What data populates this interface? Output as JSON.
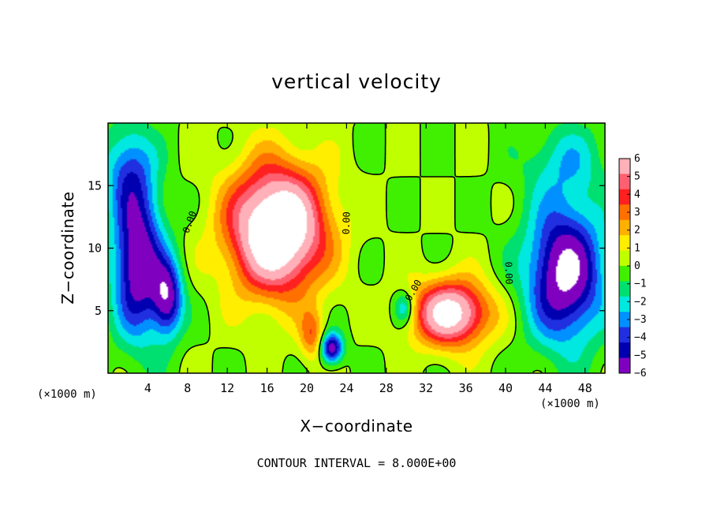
{
  "chart_data": {
    "type": "heatmap",
    "title": "vertical velocity",
    "xlabel": "X−coordinate",
    "ylabel": "Z−coordinate",
    "x_unit": "(×1000 m)",
    "z_unit": "(×1000 m)",
    "xlim": [
      0,
      50
    ],
    "ylim": [
      0,
      20
    ],
    "x_ticks": [
      4,
      8,
      12,
      16,
      20,
      24,
      28,
      32,
      36,
      40,
      44,
      48
    ],
    "y_ticks": [
      5,
      10,
      15
    ],
    "colorbar": {
      "min": -6,
      "max": 6,
      "labels": [
        "6",
        "5",
        "4",
        "3",
        "2",
        "1",
        "0",
        "−1",
        "−2",
        "−3",
        "−4",
        "−5",
        "−6"
      ],
      "colors": [
        "#ffb0b8",
        "#ff6070",
        "#ff2020",
        "#ff7000",
        "#ffb000",
        "#ffee00",
        "#c0ff00",
        "#40f000",
        "#00e070",
        "#00e8e0",
        "#0090ff",
        "#2030e0",
        "#0000b0",
        "#8000c0"
      ]
    },
    "contour_labels": [
      "0.00",
      "0.00",
      "0.00",
      "0.00"
    ],
    "contour_interval_text": "CONTOUR INTERVAL = 8.000E+00",
    "features": [
      {
        "kind": "updraft",
        "x": 17.0,
        "z": 11.5,
        "rx": 4.8,
        "rz": 5.0,
        "w": 9.5
      },
      {
        "kind": "updraft",
        "x": 34.5,
        "z": 4.8,
        "rx": 3.8,
        "rz": 2.6,
        "w": 7.5
      },
      {
        "kind": "updraft",
        "x": 20.5,
        "z": 3.0,
        "rx": 1.2,
        "rz": 2.0,
        "w": 3.0
      },
      {
        "kind": "downdraft",
        "x": 3.0,
        "z": 9.0,
        "rx": 2.5,
        "rz": 6.0,
        "w": -6.5
      },
      {
        "kind": "downdraft",
        "x": 6.0,
        "z": 6.0,
        "rx": 1.5,
        "rz": 3.0,
        "w": -5.5
      },
      {
        "kind": "downdraft",
        "x": 46.0,
        "z": 8.0,
        "rx": 3.8,
        "rz": 5.5,
        "w": -7.0
      },
      {
        "kind": "downdraft",
        "x": 22.5,
        "z": 2.0,
        "rx": 1.1,
        "rz": 1.2,
        "w": -6.0
      },
      {
        "kind": "downdraft",
        "x": 29.8,
        "z": 5.2,
        "rx": 1.0,
        "rz": 1.3,
        "w": -3.0
      },
      {
        "kind": "downdraft",
        "x": 2.0,
        "z": 16.5,
        "rx": 2.5,
        "rz": 3.5,
        "w": -3.0
      },
      {
        "kind": "downdraft",
        "x": 46.0,
        "z": 17.0,
        "rx": 4.0,
        "rz": 3.0,
        "w": -2.0
      }
    ]
  }
}
